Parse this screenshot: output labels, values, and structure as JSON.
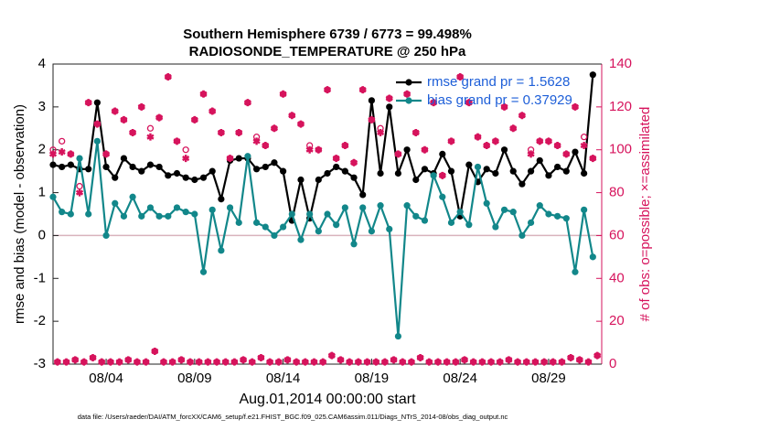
{
  "chart_data": {
    "type": "line",
    "title": "Southern Hemisphere 6739 / 6773 = 99.498%",
    "subtitle": "RADIOSONDE_TEMPERATURE @ 250 hPa",
    "xlabel": "Aug.01,2014 00:00:00 start",
    "ylabel": "rmse and bias (model - observation)",
    "y2label": "# of obs: o=possible; ×=assimilated",
    "footnote": "data file: /Users/raeder/DAI/ATM_forcXX/CAM6_setup/f.e21.FHIST_BGC.f09_025.CAM6assim.011/Diags_NTrS_2014-08/obs_diag_output.nc",
    "xlim": [
      0,
      31
    ],
    "xticks": [
      {
        "value": 3,
        "label": "08/04"
      },
      {
        "value": 8,
        "label": "08/09"
      },
      {
        "value": 13,
        "label": "08/14"
      },
      {
        "value": 18,
        "label": "08/19"
      },
      {
        "value": 23,
        "label": "08/24"
      },
      {
        "value": 28,
        "label": "08/29"
      }
    ],
    "ylim": [
      -3,
      4
    ],
    "yticks": [
      -3,
      -2,
      -1,
      0,
      1,
      2,
      3,
      4
    ],
    "y2lim": [
      0,
      140
    ],
    "y2ticks": [
      0,
      20,
      40,
      60,
      80,
      100,
      120,
      140
    ],
    "hline": 0,
    "legend": "northeast",
    "series": [
      {
        "name": "rmse grand pr = 1.5628",
        "color": "#000000",
        "marker": "dot-line",
        "axis": "y",
        "x": [
          0,
          0.5,
          1,
          1.5,
          2,
          2.5,
          3,
          3.5,
          4,
          4.5,
          5,
          5.5,
          6,
          6.5,
          7,
          7.5,
          8,
          8.5,
          9,
          9.5,
          10,
          10.5,
          11,
          11.5,
          12,
          12.5,
          13,
          13.5,
          14,
          14.5,
          15,
          15.5,
          16,
          16.5,
          17,
          17.5,
          18,
          18.5,
          19,
          19.5,
          20,
          20.5,
          21,
          21.5,
          22,
          22.5,
          23,
          23.5,
          24,
          24.5,
          25,
          25.5,
          26,
          26.5,
          27,
          27.5,
          28,
          28.5,
          29,
          29.5,
          30,
          30.5
        ],
        "values": [
          1.65,
          1.6,
          1.65,
          1.55,
          1.55,
          3.1,
          1.6,
          1.35,
          1.8,
          1.6,
          1.5,
          1.65,
          1.6,
          1.4,
          1.45,
          1.35,
          1.3,
          1.35,
          1.5,
          0.85,
          1.75,
          1.8,
          1.8,
          1.55,
          1.6,
          1.7,
          1.5,
          0.35,
          1.3,
          0.4,
          1.3,
          1.45,
          1.6,
          1.5,
          1.35,
          0.95,
          3.15,
          1.45,
          3.0,
          1.45,
          2.0,
          1.3,
          1.55,
          1.45,
          1.9,
          1.5,
          0.45,
          1.65,
          1.25,
          1.55,
          1.45,
          2.0,
          1.5,
          1.2,
          1.5,
          1.75,
          1.4,
          1.6,
          1.5,
          1.95,
          1.45,
          3.75
        ]
      },
      {
        "name": "bias grand pr = 0.37929",
        "color": "#12878a",
        "marker": "dot-line",
        "axis": "y",
        "x": [
          0,
          0.5,
          1,
          1.5,
          2,
          2.5,
          3,
          3.5,
          4,
          4.5,
          5,
          5.5,
          6,
          6.5,
          7,
          7.5,
          8,
          8.5,
          9,
          9.5,
          10,
          10.5,
          11,
          11.5,
          12,
          12.5,
          13,
          13.5,
          14,
          14.5,
          15,
          15.5,
          16,
          16.5,
          17,
          17.5,
          18,
          18.5,
          19,
          19.5,
          20,
          20.5,
          21,
          21.5,
          22,
          22.5,
          23,
          23.5,
          24,
          24.5,
          25,
          25.5,
          26,
          26.5,
          27,
          27.5,
          28,
          28.5,
          29,
          29.5,
          30,
          30.5
        ],
        "values": [
          0.9,
          0.55,
          0.5,
          1.8,
          0.5,
          2.2,
          0,
          0.75,
          0.45,
          0.9,
          0.45,
          0.65,
          0.45,
          0.45,
          0.65,
          0.55,
          0.5,
          -0.85,
          0.6,
          -0.35,
          0.65,
          0.3,
          1.85,
          0.3,
          0.2,
          0,
          0.2,
          0.5,
          -0.1,
          0.5,
          0.1,
          0.5,
          0.25,
          0.65,
          -0.2,
          0.65,
          0.1,
          0.7,
          0.15,
          -2.35,
          0.7,
          0.45,
          0.35,
          1.4,
          0.9,
          0.3,
          0.55,
          0.25,
          1.6,
          0.75,
          0.2,
          0.6,
          0.55,
          0,
          0.3,
          0.7,
          0.5,
          0.45,
          0.4,
          -0.85,
          0.6,
          -0.5
        ]
      },
      {
        "color": "#d6135c",
        "marker": "circle",
        "axis": "y2",
        "x": [
          0,
          0.25,
          0.5,
          0.75,
          1,
          1.25,
          1.5,
          1.75,
          2,
          2.25,
          2.5,
          2.75,
          3,
          3.25,
          3.5,
          3.75,
          4,
          4.25,
          4.5,
          4.75,
          5,
          5.25,
          5.5,
          5.75,
          6,
          6.25,
          6.5,
          6.75,
          7,
          7.25,
          7.5,
          7.75,
          8,
          8.25,
          8.5,
          8.75,
          9,
          9.25,
          9.5,
          9.75,
          10,
          10.25,
          10.5,
          10.75,
          11,
          11.25,
          11.5,
          11.75,
          12,
          12.25,
          12.5,
          12.75,
          13,
          13.25,
          13.5,
          13.75,
          14,
          14.25,
          14.5,
          14.75,
          15,
          15.25,
          15.5,
          15.75,
          16,
          16.25,
          16.5,
          16.75,
          17,
          17.25,
          17.5,
          17.75,
          18,
          18.25,
          18.5,
          18.75,
          19,
          19.25,
          19.5,
          19.75,
          20,
          20.25,
          20.5,
          20.75,
          21,
          21.25,
          21.5,
          21.75,
          22,
          22.25,
          22.5,
          22.75,
          23,
          23.25,
          23.5,
          23.75,
          24,
          24.25,
          24.5,
          24.75,
          25,
          25.25,
          25.5,
          25.75,
          26,
          26.25,
          26.5,
          26.75,
          27,
          27.25,
          27.5,
          27.75,
          28,
          28.25,
          28.5,
          28.75,
          29,
          29.25,
          29.5,
          29.75,
          30,
          30.25,
          30.5,
          30.75
        ],
        "values": [
          100,
          1,
          104,
          1,
          98,
          2,
          83,
          1,
          122,
          3,
          112,
          1,
          98,
          1,
          118,
          1,
          114,
          2,
          108,
          1,
          120,
          1,
          110,
          6,
          115,
          1,
          134,
          1,
          104,
          2,
          100,
          1,
          114,
          1,
          126,
          1,
          118,
          1,
          108,
          1,
          96,
          1,
          108,
          2,
          122,
          1,
          106,
          3,
          102,
          1,
          110,
          1,
          126,
          2,
          116,
          1,
          112,
          1,
          102,
          1,
          100,
          1,
          128,
          4,
          96,
          2,
          102,
          1,
          94,
          1,
          128,
          1,
          114,
          1,
          110,
          1,
          124,
          2,
          98,
          1,
          126,
          1,
          108,
          3,
          100,
          1,
          122,
          1,
          88,
          1,
          104,
          1,
          134,
          2,
          122,
          1,
          106,
          1,
          102,
          1,
          104,
          1,
          120,
          2,
          110,
          1,
          116,
          1,
          100,
          1,
          104,
          1,
          104,
          1,
          102,
          1,
          98,
          3,
          120,
          2,
          106,
          1,
          96,
          4
        ]
      },
      {
        "color": "#d6135c",
        "marker": "asterisk",
        "axis": "y2",
        "x": [
          0,
          0.25,
          0.5,
          0.75,
          1,
          1.25,
          1.5,
          1.75,
          2,
          2.25,
          2.5,
          2.75,
          3,
          3.25,
          3.5,
          3.75,
          4,
          4.25,
          4.5,
          4.75,
          5,
          5.25,
          5.5,
          5.75,
          6,
          6.25,
          6.5,
          6.75,
          7,
          7.25,
          7.5,
          7.75,
          8,
          8.25,
          8.5,
          8.75,
          9,
          9.25,
          9.5,
          9.75,
          10,
          10.25,
          10.5,
          10.75,
          11,
          11.25,
          11.5,
          11.75,
          12,
          12.25,
          12.5,
          12.75,
          13,
          13.25,
          13.5,
          13.75,
          14,
          14.25,
          14.5,
          14.75,
          15,
          15.25,
          15.5,
          15.75,
          16,
          16.25,
          16.5,
          16.75,
          17,
          17.25,
          17.5,
          17.75,
          18,
          18.25,
          18.5,
          18.75,
          19,
          19.25,
          19.5,
          19.75,
          20,
          20.25,
          20.5,
          20.75,
          21,
          21.25,
          21.5,
          21.75,
          22,
          22.25,
          22.5,
          22.75,
          23,
          23.25,
          23.5,
          23.75,
          24,
          24.25,
          24.5,
          24.75,
          25,
          25.25,
          25.5,
          25.75,
          26,
          26.25,
          26.5,
          26.75,
          27,
          27.25,
          27.5,
          27.75,
          28,
          28.25,
          28.5,
          28.75,
          29,
          29.25,
          29.5,
          29.75,
          30,
          30.25,
          30.5,
          30.75
        ],
        "values": [
          98,
          1,
          99,
          1,
          98,
          2,
          80,
          1,
          122,
          3,
          112,
          1,
          98,
          1,
          118,
          1,
          114,
          2,
          108,
          1,
          120,
          1,
          106,
          6,
          115,
          1,
          134,
          1,
          104,
          2,
          96,
          1,
          114,
          1,
          126,
          1,
          118,
          1,
          108,
          1,
          96,
          1,
          108,
          2,
          122,
          1,
          104,
          3,
          102,
          1,
          110,
          1,
          126,
          2,
          116,
          1,
          112,
          1,
          100,
          1,
          100,
          1,
          128,
          4,
          96,
          2,
          102,
          1,
          94,
          1,
          128,
          1,
          114,
          1,
          108,
          1,
          124,
          2,
          98,
          1,
          126,
          1,
          108,
          3,
          100,
          1,
          122,
          1,
          88,
          1,
          104,
          1,
          134,
          2,
          122,
          1,
          106,
          1,
          102,
          1,
          104,
          1,
          120,
          2,
          110,
          1,
          116,
          1,
          98,
          1,
          104,
          1,
          104,
          1,
          102,
          1,
          98,
          3,
          120,
          2,
          102,
          1,
          96,
          4
        ]
      }
    ]
  }
}
